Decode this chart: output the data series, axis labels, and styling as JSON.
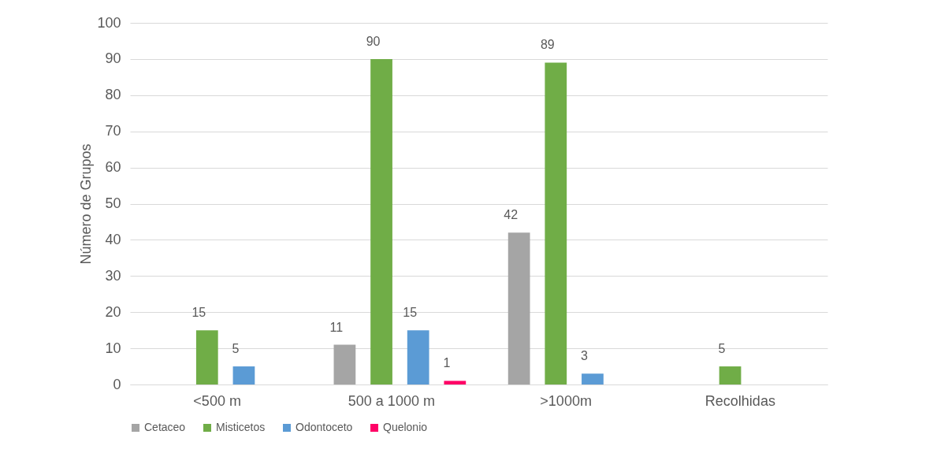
{
  "chart_data": {
    "type": "bar",
    "ylabel": "Número de Grupos",
    "categories": [
      "<500 m",
      "500 a 1000 m",
      ">1000m",
      "Recolhidas"
    ],
    "series": [
      {
        "name": "Cetaceo",
        "color": "#a5a5a5",
        "values": [
          null,
          11,
          42,
          null
        ]
      },
      {
        "name": "Misticetos",
        "color": "#70ad47",
        "values": [
          15,
          90,
          89,
          5
        ]
      },
      {
        "name": "Odontoceto",
        "color": "#5b9bd5",
        "values": [
          5,
          15,
          3,
          null
        ]
      },
      {
        "name": "Quelonio",
        "color": "#ff0066",
        "values": [
          null,
          1,
          null,
          null
        ]
      }
    ],
    "ylim": [
      0,
      100
    ],
    "yticks": [
      0,
      10,
      20,
      30,
      40,
      50,
      60,
      70,
      80,
      90,
      100
    ],
    "grid": "y",
    "legend": "bottom",
    "data_labels": true
  }
}
